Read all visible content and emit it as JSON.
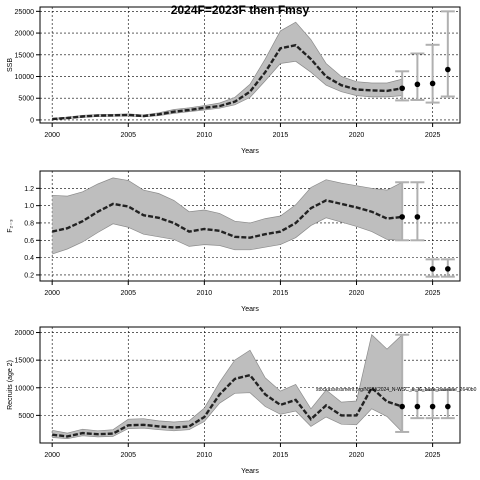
{
  "page_title": "2024F=2023F then Fmsy",
  "annotation": "stockassessment.org/NSSK2024_N-WSC_rr_f6_base_baseline_2640b0",
  "colors": {
    "band": "#bebebe",
    "band_edge": "#8c8c8c",
    "line": "#222222",
    "errorbar": "#b0b0b0",
    "grid": "#000000"
  },
  "chart_data": [
    {
      "type": "line",
      "ylabel": "SSB",
      "xlabel": "Years",
      "xlim": [
        1999.2,
        2026.8
      ],
      "ylim": [
        -700,
        26000
      ],
      "xticks": [
        2000,
        2005,
        2010,
        2015,
        2020,
        2025
      ],
      "yticks": [
        0,
        5000,
        10000,
        15000,
        20000,
        25000
      ],
      "grid": true,
      "x": [
        2000,
        2001,
        2002,
        2003,
        2004,
        2005,
        2006,
        2007,
        2008,
        2009,
        2010,
        2011,
        2012,
        2013,
        2014,
        2015,
        2016,
        2017,
        2018,
        2019,
        2020,
        2021,
        2022,
        2023
      ],
      "estimate": [
        200,
        450,
        800,
        1000,
        1050,
        1150,
        900,
        1300,
        1900,
        2300,
        2800,
        3200,
        4200,
        6500,
        11000,
        16500,
        17200,
        14000,
        10000,
        8000,
        7000,
        6800,
        6700,
        7300
      ],
      "lower": [
        100,
        300,
        600,
        800,
        850,
        900,
        700,
        1000,
        1500,
        1900,
        2300,
        2700,
        3500,
        5200,
        9000,
        13000,
        13500,
        11000,
        8000,
        6500,
        5600,
        5300,
        5300,
        5600
      ],
      "upper": [
        350,
        650,
        1050,
        1250,
        1300,
        1400,
        1150,
        1650,
        2400,
        2800,
        3300,
        3900,
        5200,
        8200,
        14000,
        20500,
        22500,
        18500,
        13000,
        10000,
        8800,
        8500,
        8500,
        9400
      ],
      "forecast": [
        {
          "x": 2023,
          "mid": 7300,
          "low": 4500,
          "high": 11200
        },
        {
          "x": 2024,
          "mid": 8200,
          "low": 4600,
          "high": 15300
        },
        {
          "x": 2025,
          "mid": 8400,
          "low": 4000,
          "high": 17300
        },
        {
          "x": 2026,
          "mid": 11600,
          "low": 5400,
          "high": 25000
        }
      ]
    },
    {
      "type": "line",
      "ylabel": "F₂₋₃",
      "xlabel": "Years",
      "xlim": [
        1999.2,
        2026.8
      ],
      "ylim": [
        0.13,
        1.4
      ],
      "xticks": [
        2000,
        2005,
        2010,
        2015,
        2020,
        2025
      ],
      "yticks": [
        0.2,
        0.4,
        0.6,
        0.8,
        1.0,
        1.2
      ],
      "ytick_labels": [
        "0.2",
        "0.4",
        "0.6",
        "0.8",
        "1.0",
        "1.2"
      ],
      "grid": true,
      "x": [
        2000,
        2001,
        2002,
        2003,
        2004,
        2005,
        2006,
        2007,
        2008,
        2009,
        2010,
        2011,
        2012,
        2013,
        2014,
        2015,
        2016,
        2017,
        2018,
        2019,
        2020,
        2021,
        2022,
        2023
      ],
      "estimate": [
        0.7,
        0.74,
        0.82,
        0.93,
        1.02,
        0.99,
        0.89,
        0.86,
        0.8,
        0.7,
        0.73,
        0.71,
        0.64,
        0.63,
        0.67,
        0.7,
        0.8,
        0.97,
        1.06,
        1.02,
        0.98,
        0.93,
        0.85,
        0.87
      ],
      "lower": [
        0.44,
        0.5,
        0.58,
        0.69,
        0.79,
        0.75,
        0.67,
        0.64,
        0.61,
        0.53,
        0.55,
        0.54,
        0.49,
        0.49,
        0.52,
        0.55,
        0.63,
        0.77,
        0.86,
        0.81,
        0.76,
        0.7,
        0.61,
        0.6
      ],
      "upper": [
        1.12,
        1.11,
        1.16,
        1.25,
        1.32,
        1.29,
        1.18,
        1.14,
        1.06,
        0.93,
        0.95,
        0.91,
        0.82,
        0.8,
        0.85,
        0.88,
        1.01,
        1.21,
        1.3,
        1.26,
        1.23,
        1.2,
        1.18,
        1.27
      ],
      "forecast": [
        {
          "x": 2023,
          "mid": 0.87,
          "low": 0.6,
          "high": 1.27
        },
        {
          "x": 2024,
          "mid": 0.87,
          "low": 0.6,
          "high": 1.27
        },
        {
          "x": 2025,
          "mid": 0.27,
          "low": 0.18,
          "high": 0.38
        },
        {
          "x": 2026,
          "mid": 0.27,
          "low": 0.18,
          "high": 0.38
        }
      ]
    },
    {
      "type": "line",
      "ylabel": "Recruits (age 2)",
      "xlabel": "Years",
      "xlim": [
        1999.2,
        2026.8
      ],
      "ylim": [
        0,
        21000
      ],
      "xticks": [
        2000,
        2005,
        2010,
        2015,
        2020,
        2025
      ],
      "yticks": [
        5000,
        10000,
        15000,
        20000
      ],
      "grid": true,
      "x": [
        2000,
        2001,
        2002,
        2003,
        2004,
        2005,
        2006,
        2007,
        2008,
        2009,
        2010,
        2011,
        2012,
        2013,
        2014,
        2015,
        2016,
        2017,
        2018,
        2019,
        2020,
        2021,
        2022,
        2023
      ],
      "estimate": [
        1500,
        1200,
        1800,
        1600,
        1700,
        3200,
        3300,
        3000,
        2800,
        3000,
        4700,
        8800,
        11600,
        12300,
        8800,
        6900,
        7800,
        4300,
        6800,
        5000,
        5000,
        10000,
        7500,
        6600
      ],
      "lower": [
        1000,
        800,
        1300,
        1100,
        1200,
        2600,
        2700,
        2400,
        2200,
        2400,
        3900,
        7200,
        9000,
        9100,
        6600,
        5200,
        5800,
        3000,
        4700,
        3400,
        3300,
        6200,
        4800,
        2000
      ],
      "upper": [
        2300,
        1800,
        2500,
        2200,
        2400,
        4300,
        4400,
        4000,
        3800,
        4000,
        6300,
        11000,
        15000,
        16800,
        11800,
        9400,
        10600,
        6200,
        9600,
        7400,
        7600,
        19600,
        17000,
        19600
      ],
      "forecast": [
        {
          "x": 2023,
          "mid": 6600,
          "low": 2000,
          "high": 19600
        },
        {
          "x": 2024,
          "mid": 6600,
          "low": 4500,
          "high": 9600
        },
        {
          "x": 2025,
          "mid": 6600,
          "low": 4500,
          "high": 9600
        },
        {
          "x": 2026,
          "mid": 6600,
          "low": 4500,
          "high": 9600
        }
      ]
    }
  ]
}
